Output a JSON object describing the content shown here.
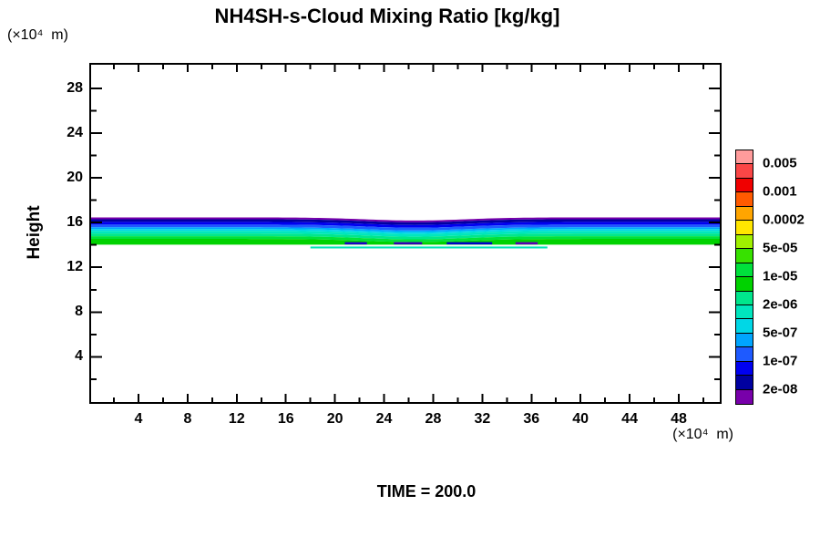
{
  "title": "NH4SH-s-Cloud Mixing Ratio [kg/kg]",
  "time_label": "TIME = 200.0",
  "x_axis": {
    "unit_label": "(×10⁴  m)",
    "major_ticks": [
      4,
      8,
      12,
      16,
      20,
      24,
      28,
      32,
      36,
      40,
      44,
      48
    ],
    "minor_ticks": [
      2,
      6,
      10,
      14,
      18,
      22,
      26,
      30,
      34,
      38,
      42,
      46,
      50
    ]
  },
  "y_axis": {
    "label": "Height",
    "unit_label": "(×10⁴  m)",
    "major_ticks": [
      4,
      8,
      12,
      16,
      20,
      24,
      28
    ],
    "minor_ticks": [
      2,
      6,
      10,
      14,
      18,
      22,
      26
    ]
  },
  "colorbar": {
    "colors_top_to_bottom": [
      "#ff9b9b",
      "#fa4646",
      "#f00000",
      "#ff5a00",
      "#ffa500",
      "#ffe600",
      "#a0f000",
      "#37e100",
      "#00e13c",
      "#00d200",
      "#00e68c",
      "#00e6be",
      "#00d7e6",
      "#00a5ff",
      "#1e5aff",
      "#0000f0",
      "#0000a0",
      "#7800aa"
    ],
    "labels": [
      {
        "text": "0.005",
        "boundary": 1
      },
      {
        "text": "0.001",
        "boundary": 3
      },
      {
        "text": "0.0002",
        "boundary": 5
      },
      {
        "text": "5e-05",
        "boundary": 7
      },
      {
        "text": "1e-05",
        "boundary": 9
      },
      {
        "text": "2e-06",
        "boundary": 11
      },
      {
        "text": "5e-07",
        "boundary": 13
      },
      {
        "text": "1e-07",
        "boundary": 15
      },
      {
        "text": "2e-08",
        "boundary": 17
      }
    ]
  },
  "colors": {
    "axis": "#000000",
    "background": "#ffffff"
  },
  "chart_data": {
    "type": "heatmap",
    "title": "NH4SH-s-Cloud Mixing Ratio [kg/kg]",
    "xlabel": "(×10⁴ m)",
    "ylabel": "Height (×10⁴ m)",
    "x_range": [
      0,
      51.4
    ],
    "y_range": [
      0,
      30.1
    ],
    "time": 200.0,
    "levels_labeled": [
      "0.005",
      "0.001",
      "0.0002",
      "5e-05",
      "1e-05",
      "2e-06",
      "5e-07",
      "1e-07",
      "2e-08"
    ],
    "cloud_layer": {
      "description": "Thin horizontal cloud deck between heights ~14.0 and ~16.5 (x10^4 m), mixing ratio increasing downward from <2e-08 at layer top to ~2e-05 kg/kg near layer base; slight downward dip near x~26.",
      "top_height": 16.46,
      "bottom_height": 14.02,
      "stripes_top_to_bottom": [
        {
          "color": "#7800aa",
          "top": 16.46,
          "thickness": 0.16,
          "value_range": "≤2e-08"
        },
        {
          "color": "#0000a0",
          "top": 16.3,
          "thickness": 0.24,
          "value_range": "2e-08–5e-08"
        },
        {
          "color": "#0000f0",
          "top": 16.06,
          "thickness": 0.24,
          "value_range": "5e-08–1e-07"
        },
        {
          "color": "#1e5aff",
          "top": 15.82,
          "thickness": 0.24,
          "value_range": "1e-07–2e-07"
        },
        {
          "color": "#00a5ff",
          "top": 15.58,
          "thickness": 0.16,
          "value_range": "2e-07–5e-07"
        },
        {
          "color": "#00d7e6",
          "top": 15.42,
          "thickness": 0.16,
          "value_range": "5e-07–1e-06"
        },
        {
          "color": "#00e6be",
          "top": 15.26,
          "thickness": 0.24,
          "value_range": "1e-06–2e-06"
        },
        {
          "color": "#00e68c",
          "top": 15.02,
          "thickness": 0.24,
          "value_range": "2e-06–5e-06"
        },
        {
          "color": "#00e13c",
          "top": 14.78,
          "thickness": 0.24,
          "value_range": "5e-06–1e-05"
        },
        {
          "color": "#00d200",
          "top": 14.54,
          "thickness": 0.52,
          "value_range": "1e-05–2e-05"
        }
      ],
      "dip": {
        "center_x": 26.5,
        "amplitude": 0.28,
        "sigma_x": 4.1
      },
      "dashes": [
        {
          "x0": 20.8,
          "x1": 22.6,
          "height": 14.25,
          "thickness": 0.2,
          "color": "#1e00c8"
        },
        {
          "x0": 24.8,
          "x1": 27.1,
          "height": 14.25,
          "thickness": 0.2,
          "color": "#3200b4"
        },
        {
          "x0": 29.1,
          "x1": 32.8,
          "height": 14.25,
          "thickness": 0.2,
          "color": "#0000c8"
        },
        {
          "x0": 34.7,
          "x1": 36.5,
          "height": 14.25,
          "thickness": 0.2,
          "color": "#5a00b4"
        }
      ],
      "underline": {
        "x0": 18.0,
        "x1": 37.3,
        "height": 13.86,
        "thickness": 0.17,
        "color": "#00e6b4"
      }
    }
  }
}
